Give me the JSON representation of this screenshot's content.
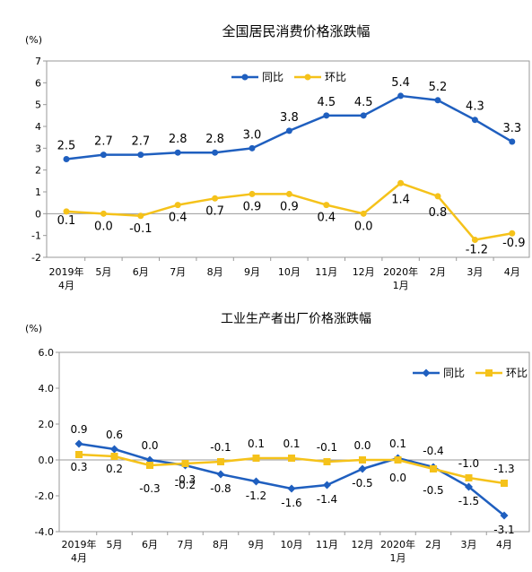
{
  "chart_data": [
    {
      "type": "line",
      "title": "全国居民消费价格涨跌幅",
      "unit_label": "(%)",
      "ylim": [
        -2,
        7
      ],
      "yticks": [
        "7",
        "6",
        "5",
        "4",
        "3",
        "2",
        "1",
        "0",
        "-1",
        "-2"
      ],
      "ytick_values": [
        7,
        6,
        5,
        4,
        3,
        2,
        1,
        0,
        -1,
        -2
      ],
      "categories": [
        "2019年|4月",
        "5月",
        "6月",
        "7月",
        "8月",
        "9月",
        "10月",
        "11月",
        "12月",
        "2020年|1月",
        "2月",
        "3月",
        "4月"
      ],
      "grid": false,
      "legend_position": "top-right",
      "series": [
        {
          "name": "同比",
          "color": "#1f5fbf",
          "marker": "circle",
          "values": [
            2.5,
            2.7,
            2.7,
            2.8,
            2.8,
            3.0,
            3.8,
            4.5,
            4.5,
            5.4,
            5.2,
            4.3,
            3.3
          ],
          "labels": [
            "2.5",
            "2.7",
            "2.7",
            "2.8",
            "2.8",
            "3.0",
            "3.8",
            "4.5",
            "4.5",
            "5.4",
            "5.2",
            "4.3",
            "3.3"
          ]
        },
        {
          "name": "环比",
          "color": "#f5c21a",
          "marker": "circle",
          "values": [
            0.1,
            0.0,
            -0.1,
            0.4,
            0.7,
            0.9,
            0.9,
            0.4,
            0.0,
            1.4,
            0.8,
            -1.2,
            -0.9
          ],
          "labels": [
            "0.1",
            "0.0",
            "-0.1",
            "0.4",
            "0.7",
            "0.9",
            "0.9",
            "0.4",
            "0.0",
            "1.4",
            "0.8",
            "-1.2",
            "-0.9"
          ]
        }
      ]
    },
    {
      "type": "line",
      "title": "工业生产者出厂价格涨跌幅",
      "unit_label": "(%)",
      "ylim": [
        -4,
        6
      ],
      "yticks": [
        "6.0",
        "4.0",
        "2.0",
        "0.0",
        "-2.0",
        "-4.0"
      ],
      "ytick_values": [
        6,
        4,
        2,
        0,
        -2,
        -4
      ],
      "categories": [
        "2019年|4月",
        "5月",
        "6月",
        "7月",
        "8月",
        "9月",
        "10月",
        "11月",
        "12月",
        "2020年|1月",
        "2月",
        "3月",
        "4月"
      ],
      "grid": false,
      "legend_position": "top-right",
      "series": [
        {
          "name": "同比",
          "color": "#1f5fbf",
          "marker": "diamond",
          "values": [
            0.9,
            0.6,
            0.0,
            -0.3,
            -0.8,
            -1.2,
            -1.6,
            -1.4,
            -0.5,
            0.1,
            -0.4,
            -1.5,
            -3.1
          ],
          "labels": [
            "0.9",
            "0.6",
            "0.0",
            "-0.3",
            "-0.8",
            "-1.2",
            "-1.6",
            "-1.4",
            "-0.5",
            "0.1",
            "-0.4",
            "-1.5",
            "-3.1"
          ]
        },
        {
          "name": "环比",
          "color": "#f5c21a",
          "marker": "square",
          "values": [
            0.3,
            0.2,
            -0.3,
            -0.2,
            -0.1,
            0.1,
            0.1,
            -0.1,
            0.0,
            0.0,
            -0.5,
            -1.0,
            -1.3
          ],
          "labels": [
            "0.3",
            "0.2",
            "-0.3",
            "-0.2",
            "-0.1",
            "0.1",
            "0.1",
            "-0.1",
            "0.0",
            "0.0",
            "-0.5",
            "-1.0",
            "-1.3"
          ]
        }
      ]
    }
  ]
}
